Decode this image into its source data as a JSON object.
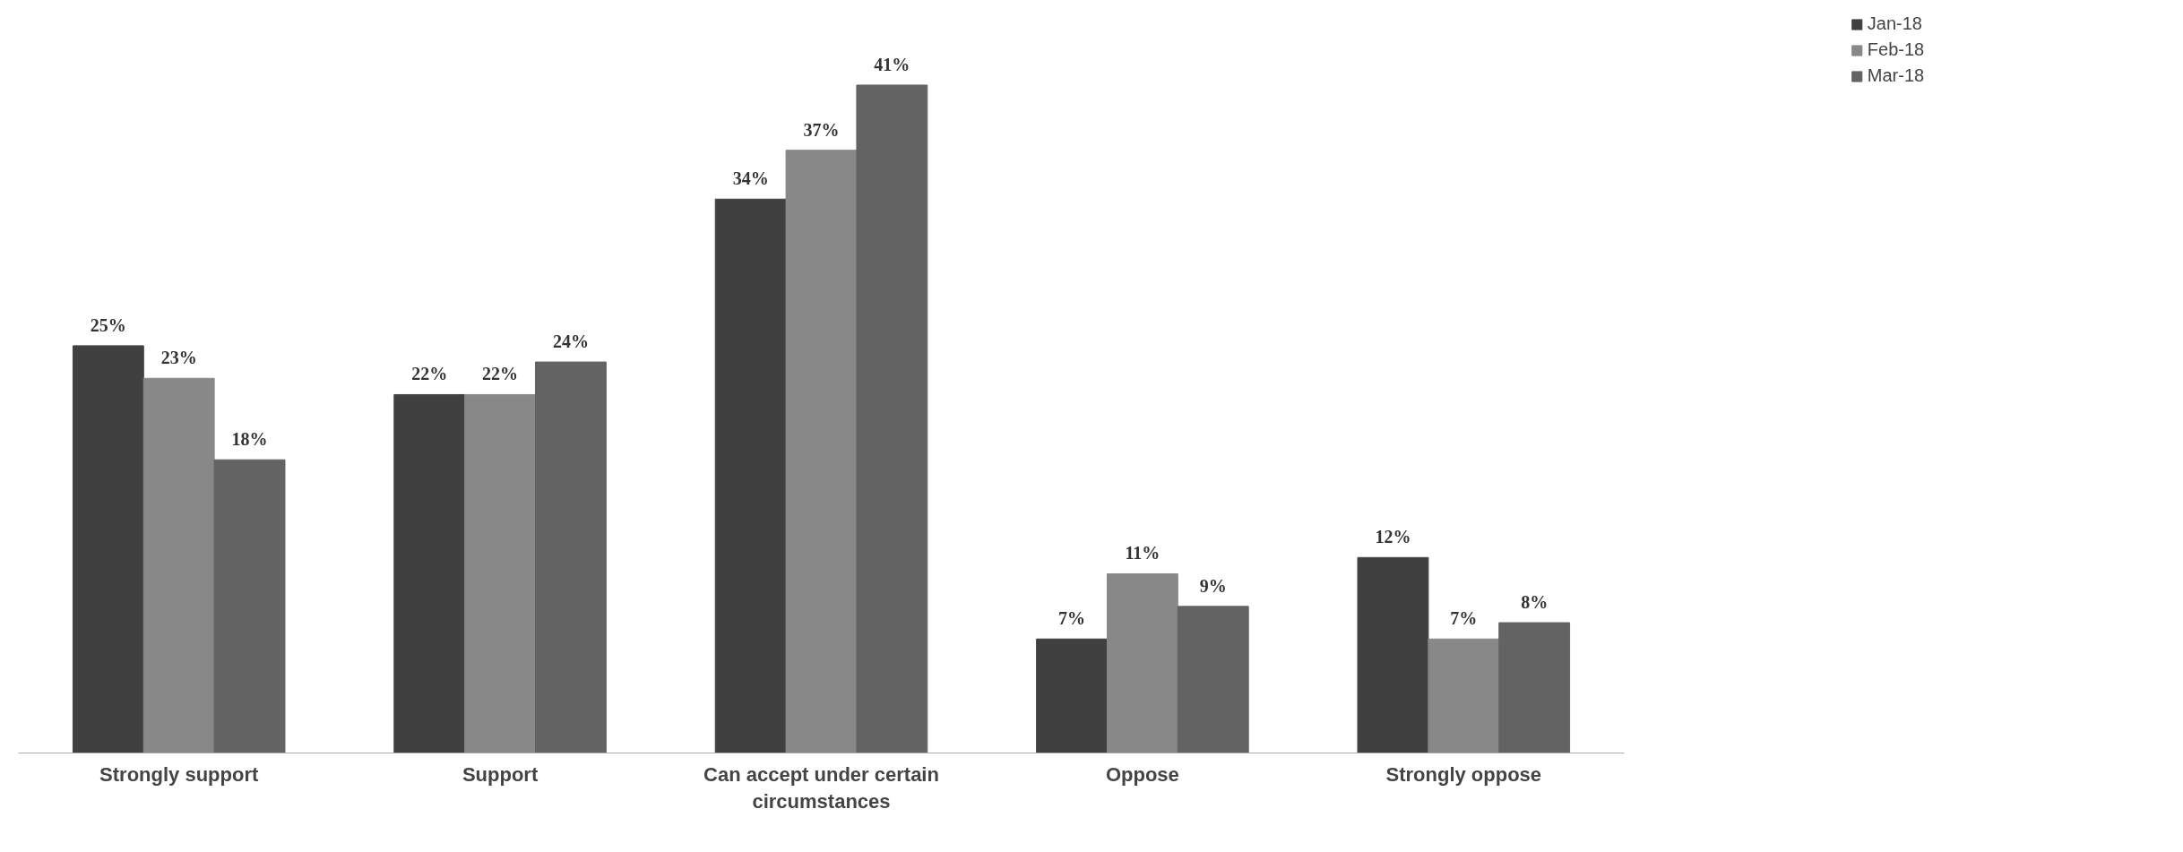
{
  "chart_data": {
    "type": "bar",
    "categories": [
      "Strongly support",
      "Support",
      "Can accept under certain circumstances",
      "Oppose",
      "Strongly oppose"
    ],
    "series": [
      {
        "name": "Jan-18",
        "color": "#404040",
        "values": [
          25,
          22,
          34,
          7,
          12
        ],
        "value_labels": [
          "25%",
          "22%",
          "34%",
          "7%",
          "12%"
        ]
      },
      {
        "name": "Feb-18",
        "color": "#888888",
        "values": [
          23,
          22,
          37,
          11,
          7
        ],
        "value_labels": [
          "23%",
          "22%",
          "37%",
          "11%",
          "7%"
        ]
      },
      {
        "name": "Mar-18",
        "color": "#636363",
        "values": [
          18,
          24,
          41,
          9,
          8
        ],
        "value_labels": [
          "18%",
          "24%",
          "41%",
          "9%",
          "8%"
        ]
      }
    ],
    "grid": false,
    "legend": "top right"
  }
}
